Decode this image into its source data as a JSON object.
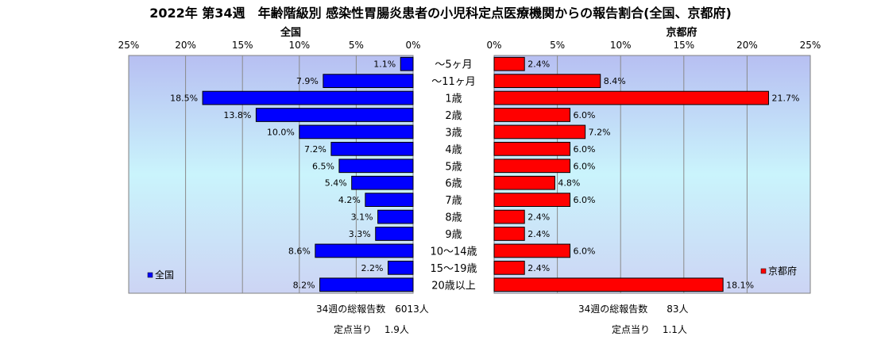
{
  "title": "2022年 第34週　年齢階級別 感染性胃腸炎患者の小児科定点医療機関からの報告割合(全国、京都府)",
  "chart_data": {
    "type": "bar",
    "orientation": "horizontal-butterfly",
    "categories": [
      "～5ヶ月",
      "～11ヶ月",
      "1歳",
      "2歳",
      "3歳",
      "4歳",
      "5歳",
      "6歳",
      "7歳",
      "8歳",
      "9歳",
      "10～14歳",
      "15～19歳",
      "20歳以上"
    ],
    "xlim": [
      0,
      25
    ],
    "ticks": [
      "0%",
      "5%",
      "10%",
      "15%",
      "20%",
      "25%"
    ],
    "grid": true,
    "series": [
      {
        "name": "全国",
        "side": "left",
        "color": "#0000ff",
        "values": [
          1.1,
          7.9,
          18.5,
          13.8,
          10.0,
          7.2,
          6.5,
          5.4,
          4.2,
          3.1,
          3.3,
          8.6,
          2.2,
          8.2
        ],
        "labels": [
          "1.1%",
          "7.9%",
          "18.5%",
          "13.8%",
          "10.0%",
          "7.2%",
          "6.5%",
          "5.4%",
          "4.2%",
          "3.1%",
          "3.3%",
          "8.6%",
          "2.2%",
          "8.2%"
        ],
        "legend": "bottom-left"
      },
      {
        "name": "京都府",
        "side": "right",
        "color": "#ff0000",
        "values": [
          2.4,
          8.4,
          21.7,
          6.0,
          7.2,
          6.0,
          6.0,
          4.8,
          6.0,
          2.4,
          2.4,
          6.0,
          2.4,
          18.1
        ],
        "labels": [
          "2.4%",
          "8.4%",
          "21.7%",
          "6.0%",
          "7.2%",
          "6.0%",
          "6.0%",
          "4.8%",
          "6.0%",
          "2.4%",
          "2.4%",
          "6.0%",
          "2.4%",
          "18.1%"
        ],
        "legend": "bottom-right"
      }
    ]
  },
  "footer": {
    "national_total": "34週の総報告数　6013人",
    "national_per_site": "定点当り　 1.9人",
    "kyoto_total": "34週の総報告数　　83人",
    "kyoto_per_site": "定点当り　 1.1人"
  }
}
